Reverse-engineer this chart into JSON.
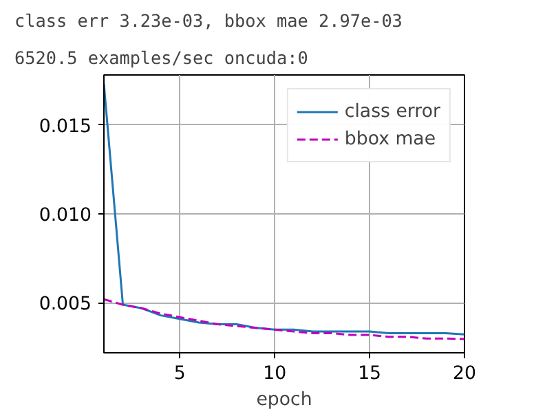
{
  "chart_data": {
    "type": "line",
    "title": "class err 3.23e-03, bbox mae 2.97e-03",
    "subtitle": "6520.5 examples/sec oncuda:0",
    "xlabel": "epoch",
    "x": [
      1,
      2,
      3,
      4,
      5,
      6,
      7,
      8,
      9,
      10,
      11,
      12,
      13,
      14,
      15,
      16,
      17,
      18,
      19,
      20
    ],
    "series": [
      {
        "name": "class error",
        "color": "#1f77b4",
        "line_style": "solid",
        "values": [
          0.0173,
          0.0049,
          0.0047,
          0.0043,
          0.0041,
          0.0039,
          0.0038,
          0.0038,
          0.0036,
          0.0035,
          0.0035,
          0.0034,
          0.0034,
          0.0034,
          0.0034,
          0.0033,
          0.0033,
          0.0033,
          0.0033,
          0.00323
        ]
      },
      {
        "name": "bbox mae",
        "color": "#bf00bf",
        "line_style": "dashed",
        "values": [
          0.0052,
          0.0049,
          0.0047,
          0.0044,
          0.0042,
          0.004,
          0.0038,
          0.0037,
          0.0036,
          0.0035,
          0.0034,
          0.0033,
          0.0033,
          0.0032,
          0.0032,
          0.0031,
          0.0031,
          0.003,
          0.003,
          0.00297
        ]
      }
    ],
    "xlim": [
      1,
      20
    ],
    "ylim": [
      0.0022,
      0.0178
    ],
    "xticks": [
      5,
      10,
      15,
      20
    ],
    "yticks": [
      {
        "value": 0.005,
        "label": "0.005"
      },
      {
        "value": 0.01,
        "label": "0.010"
      },
      {
        "value": 0.015,
        "label": "0.015"
      }
    ],
    "grid": true,
    "legend": "top right"
  }
}
